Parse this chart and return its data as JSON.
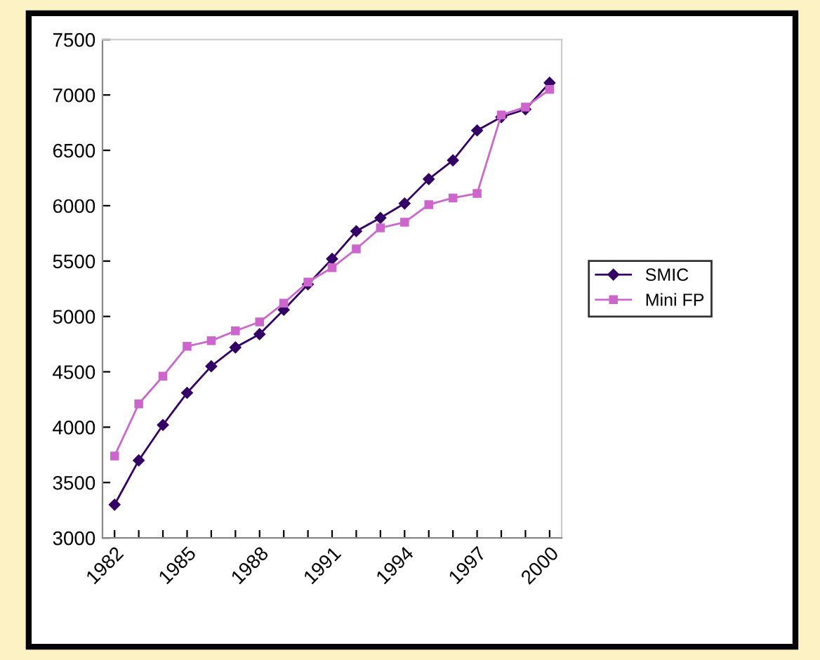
{
  "chart_data": {
    "type": "line",
    "categories": [
      "1982",
      null,
      null,
      "1985",
      null,
      null,
      "1988",
      null,
      null,
      "1991",
      null,
      null,
      "1994",
      null,
      null,
      "1997",
      null,
      null,
      "2000"
    ],
    "series": [
      {
        "name": "SMIC",
        "color": "#330066",
        "marker": "diamond",
        "values": [
          3300,
          3700,
          4020,
          4310,
          4550,
          4720,
          4840,
          5060,
          5290,
          5520,
          5770,
          5890,
          6020,
          6240,
          6410,
          6680,
          6800,
          6870,
          7110
        ]
      },
      {
        "name": "Mini FP",
        "color": "#cc66cc",
        "marker": "square",
        "values": [
          3740,
          4210,
          4460,
          4730,
          4780,
          4870,
          4950,
          5120,
          5310,
          5440,
          5610,
          5800,
          5850,
          6010,
          6070,
          6110,
          6820,
          6890,
          7050
        ]
      }
    ],
    "ylim": [
      3000,
      7500
    ],
    "yticks": [
      3000,
      3500,
      4000,
      4500,
      5000,
      5500,
      6000,
      6500,
      7000,
      7500
    ],
    "grid": false,
    "legend": "right",
    "line_style": "solid"
  }
}
